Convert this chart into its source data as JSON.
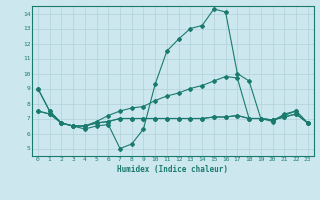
{
  "xlabel": "Humidex (Indice chaleur)",
  "bg_color": "#cce8ee",
  "grid_color": "#b0d0d8",
  "line_color": "#1a7a6e",
  "xlim": [
    -0.5,
    23.5
  ],
  "ylim": [
    4.5,
    14.5
  ],
  "yticks": [
    5,
    6,
    7,
    8,
    9,
    10,
    11,
    12,
    13,
    14
  ],
  "xticks": [
    0,
    1,
    2,
    3,
    4,
    5,
    6,
    7,
    8,
    9,
    10,
    11,
    12,
    13,
    14,
    15,
    16,
    17,
    18,
    19,
    20,
    21,
    22,
    23
  ],
  "series1": [
    9.0,
    7.5,
    6.7,
    6.5,
    6.3,
    6.5,
    6.6,
    5.0,
    5.3,
    6.3,
    9.3,
    11.5,
    12.3,
    13.0,
    13.2,
    14.3,
    14.1,
    10.0,
    9.5,
    7.0,
    6.8,
    7.3,
    7.5,
    6.7
  ],
  "series2": [
    9.0,
    7.5,
    6.7,
    6.5,
    6.5,
    6.8,
    7.2,
    7.5,
    7.7,
    7.8,
    8.2,
    8.5,
    8.7,
    9.0,
    9.2,
    9.5,
    9.8,
    9.7,
    7.0,
    7.0,
    6.9,
    7.2,
    7.5,
    6.7
  ],
  "series3": [
    7.5,
    7.3,
    6.7,
    6.5,
    6.5,
    6.7,
    6.8,
    7.0,
    7.0,
    7.0,
    7.0,
    7.0,
    7.0,
    7.0,
    7.0,
    7.1,
    7.1,
    7.2,
    7.0,
    7.0,
    6.9,
    7.1,
    7.3,
    6.7
  ],
  "series4": [
    7.5,
    7.3,
    6.7,
    6.5,
    6.5,
    6.7,
    6.8,
    7.0,
    7.0,
    7.0,
    7.0,
    7.0,
    7.0,
    7.0,
    7.0,
    7.1,
    7.1,
    7.2,
    7.0,
    7.0,
    6.9,
    7.1,
    7.3,
    6.7
  ]
}
